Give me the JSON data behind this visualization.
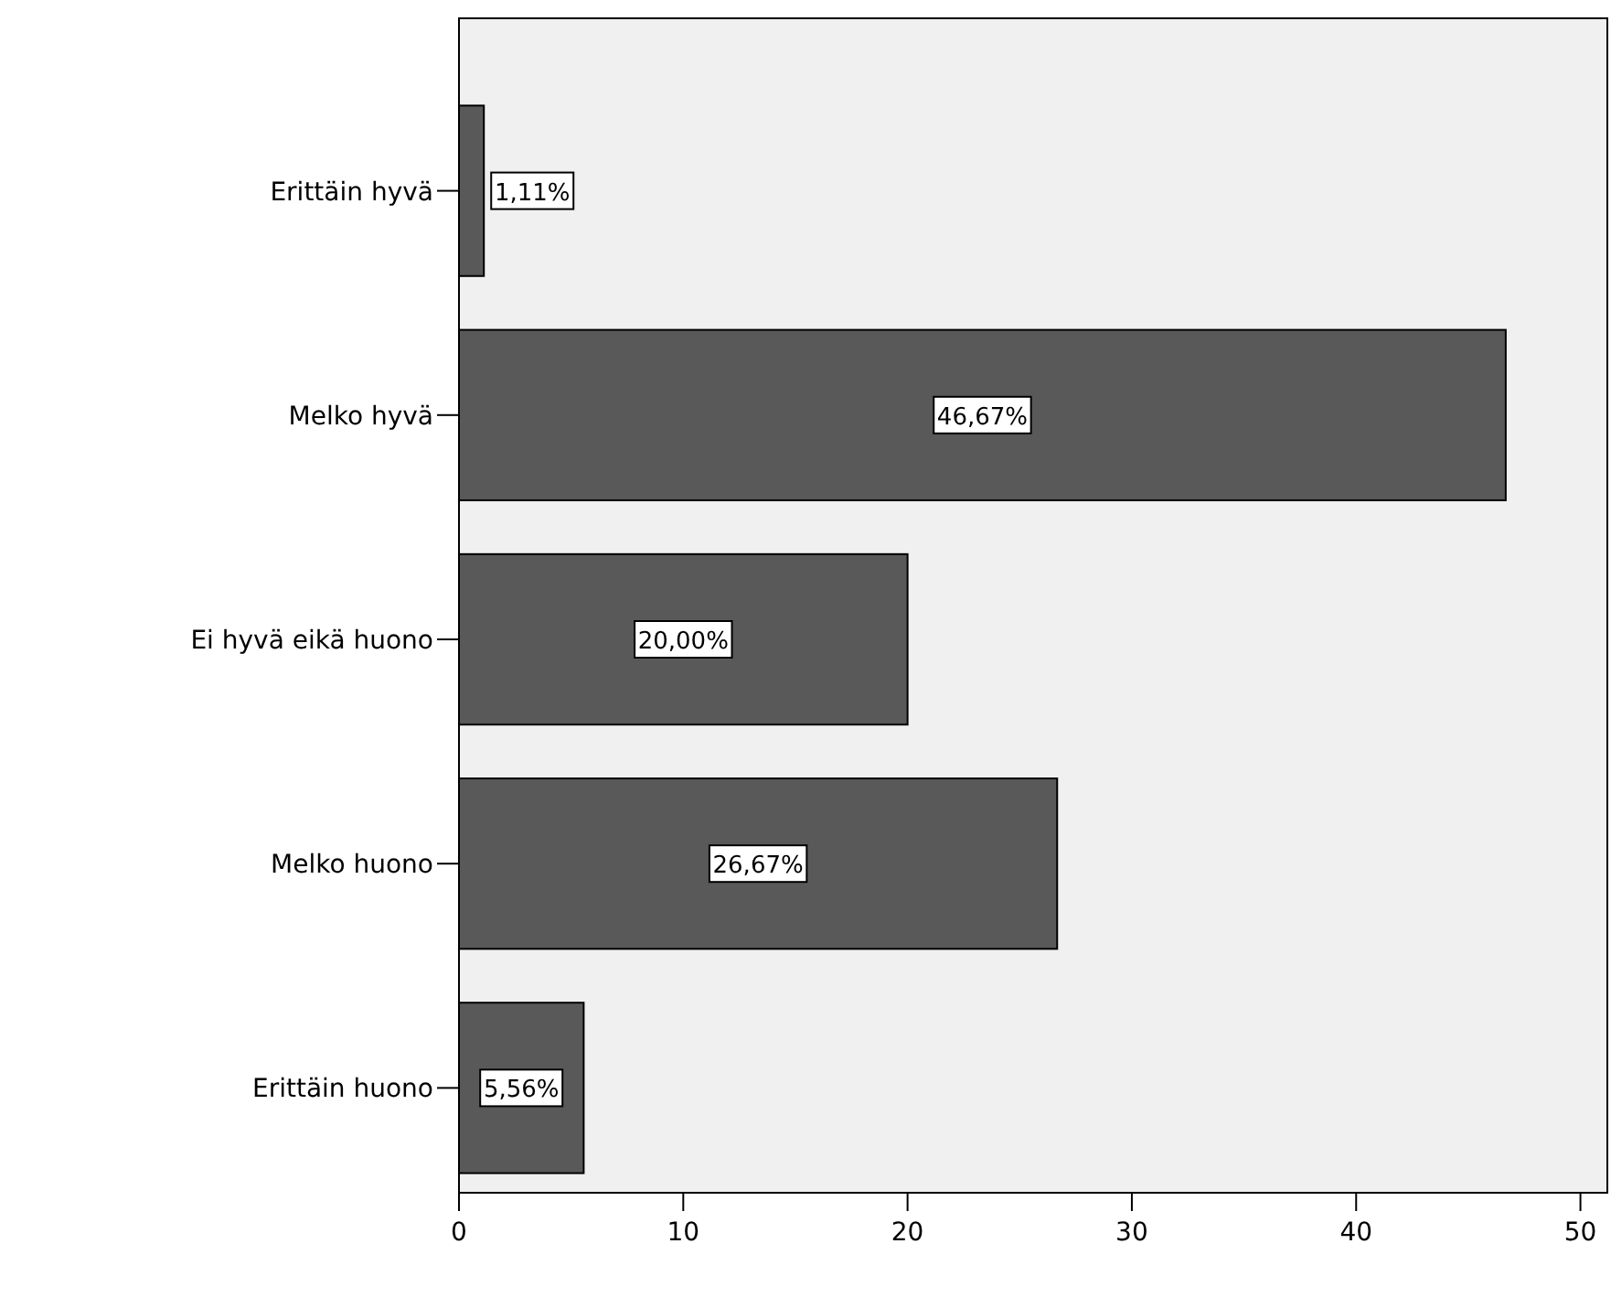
{
  "chart_data": {
    "type": "bar",
    "orientation": "horizontal",
    "categories": [
      "Erittäin hyvä",
      "Melko hyvä",
      "Ei hyvä eikä huono",
      "Melko huono",
      "Erittäin huono"
    ],
    "values": [
      1.11,
      46.67,
      20.0,
      26.67,
      5.56
    ],
    "value_labels": [
      "1,11%",
      "46,67%",
      "20,00%",
      "26,67%",
      "5,56%"
    ],
    "color": "#595959",
    "xlim": [
      0,
      51.2
    ],
    "xticks": [
      0,
      10,
      20,
      30,
      40,
      50
    ],
    "grid": false
  }
}
